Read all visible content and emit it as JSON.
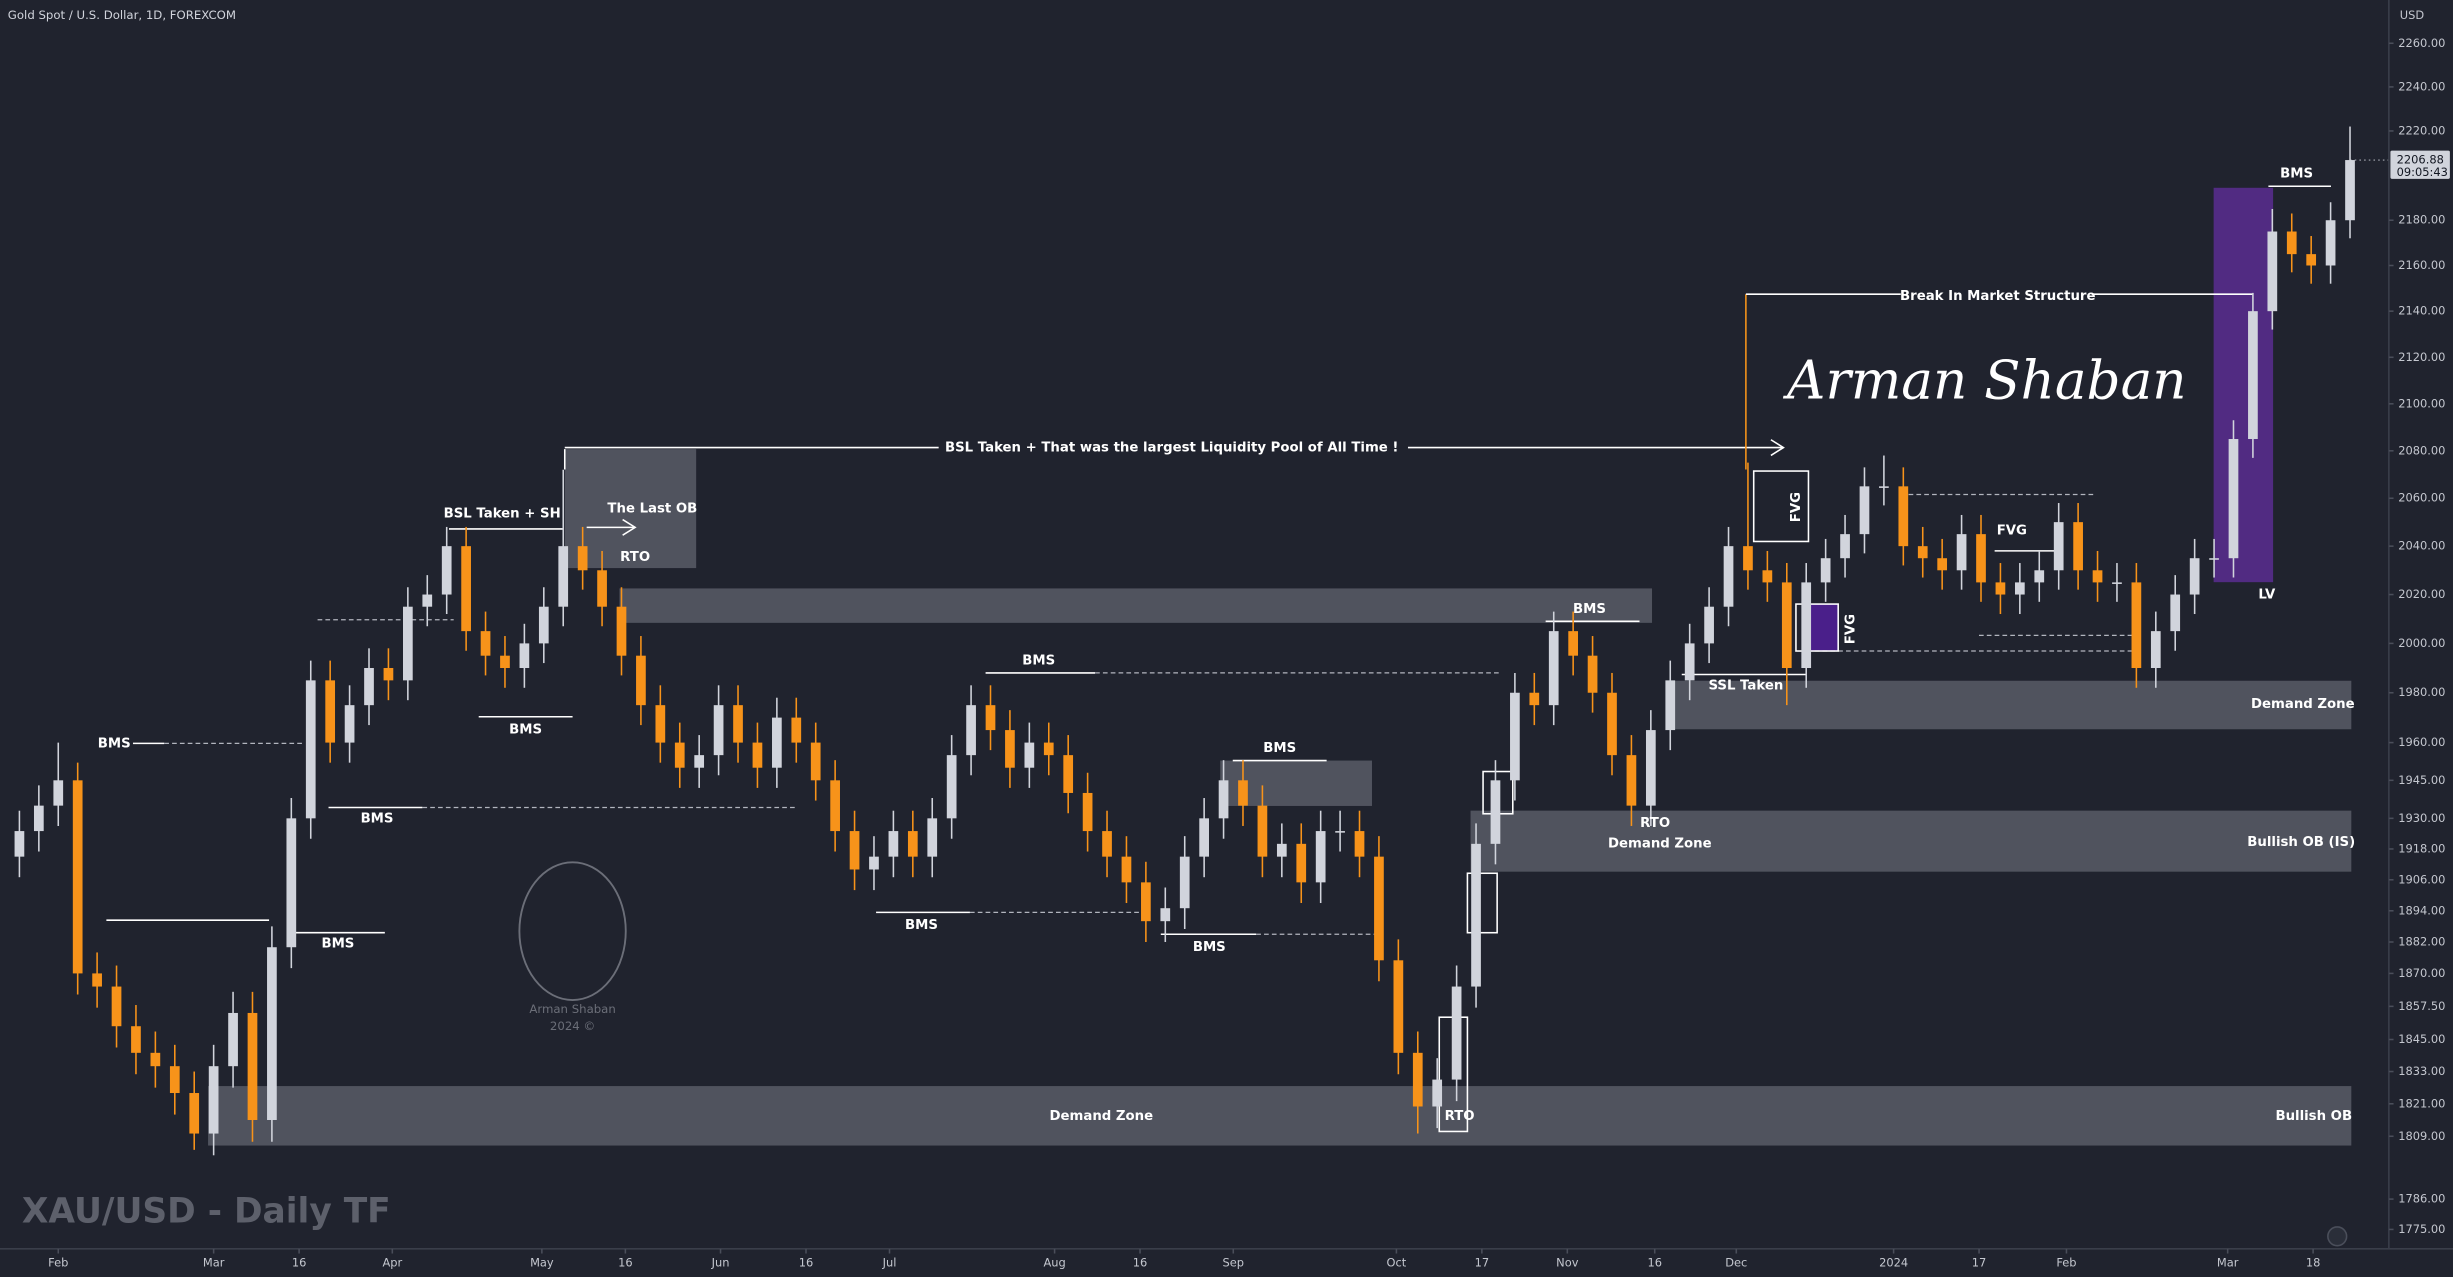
{
  "chart_data": {
    "type": "candlestick",
    "title": "Gold Spot / U.S. Dollar, 1D, FOREXCOM",
    "subtitle": "XAU/USD - Daily TF",
    "y_axis_label": "USD",
    "countdown": "09:05:43",
    "signature": "Arman Shaban",
    "watermark": [
      "Arman Shaban",
      "2024 ©"
    ],
    "up_color": "#d1d4dc",
    "down_color": "#f7931a",
    "log": true,
    "grid": false,
    "ylim": [
      1768,
      2280
    ],
    "yticks": [
      {
        "value": 2260,
        "label": "2260.00"
      },
      {
        "value": 2240,
        "label": "2240.00"
      },
      {
        "value": 2220,
        "label": "2220.00"
      },
      {
        "value": 2180,
        "label": "2180.00"
      },
      {
        "value": 2160,
        "label": "2160.00"
      },
      {
        "value": 2140,
        "label": "2140.00"
      },
      {
        "value": 2120,
        "label": "2120.00"
      },
      {
        "value": 2100,
        "label": "2100.00"
      },
      {
        "value": 2080,
        "label": "2080.00"
      },
      {
        "value": 2060,
        "label": "2060.00"
      },
      {
        "value": 2040,
        "label": "2040.00"
      },
      {
        "value": 2020,
        "label": "2020.00"
      },
      {
        "value": 2000,
        "label": "2000.00"
      },
      {
        "value": 1980,
        "label": "1980.00"
      },
      {
        "value": 1960,
        "label": "1960.00"
      },
      {
        "value": 1945,
        "label": "1945.00"
      },
      {
        "value": 1930,
        "label": "1930.00"
      },
      {
        "value": 1918,
        "label": "1918.00"
      },
      {
        "value": 1906,
        "label": "1906.00"
      },
      {
        "value": 1894,
        "label": "1894.00"
      },
      {
        "value": 1882,
        "label": "1882.00"
      },
      {
        "value": 1870,
        "label": "1870.00"
      },
      {
        "value": 1857.5,
        "label": "1857.50"
      },
      {
        "value": 1845,
        "label": "1845.00"
      },
      {
        "value": 1833,
        "label": "1833.00"
      },
      {
        "value": 1821,
        "label": "1821.00"
      },
      {
        "value": 1809,
        "label": "1809.00"
      },
      {
        "value": 1786,
        "label": "1786.00"
      },
      {
        "value": 1775,
        "label": "1775.00"
      }
    ],
    "xlim": [
      -1,
      122
    ],
    "xticks": [
      {
        "value": 2,
        "label": "Feb"
      },
      {
        "value": 10,
        "label": "Mar"
      },
      {
        "value": 14.4,
        "label": "16"
      },
      {
        "value": 19.2,
        "label": "Apr"
      },
      {
        "value": 26.9,
        "label": "May"
      },
      {
        "value": 31.2,
        "label": "16"
      },
      {
        "value": 36.1,
        "label": "Jun"
      },
      {
        "value": 40.5,
        "label": "16"
      },
      {
        "value": 44.8,
        "label": "Jul"
      },
      {
        "value": 53.3,
        "label": "Aug"
      },
      {
        "value": 57.7,
        "label": "16"
      },
      {
        "value": 62.5,
        "label": "Sep"
      },
      {
        "value": 70.9,
        "label": "Oct"
      },
      {
        "value": 75.3,
        "label": "17"
      },
      {
        "value": 79.7,
        "label": "Nov"
      },
      {
        "value": 84.2,
        "label": "16"
      },
      {
        "value": 88.4,
        "label": "Dec"
      },
      {
        "value": 96.5,
        "label": "2024"
      },
      {
        "value": 100.9,
        "label": "17"
      },
      {
        "value": 105.4,
        "label": "Feb"
      },
      {
        "value": 113.7,
        "label": "Mar"
      },
      {
        "value": 118.1,
        "label": "18"
      }
    ],
    "open": [
      1915,
      1925,
      1935,
      1945,
      1870,
      1865,
      1850,
      1840,
      1835,
      1825,
      1810,
      1835,
      1855,
      1815,
      1880,
      1930,
      1985,
      1960,
      1975,
      1990,
      1985,
      2015,
      2020,
      2040,
      2005,
      1995,
      1990,
      2000,
      2015,
      2040,
      2030,
      2015,
      1995,
      1975,
      1960,
      1950,
      1955,
      1975,
      1960,
      1950,
      1970,
      1960,
      1945,
      1925,
      1910,
      1915,
      1925,
      1915,
      1930,
      1955,
      1975,
      1965,
      1950,
      1960,
      1955,
      1940,
      1925,
      1915,
      1905,
      1890,
      1895,
      1915,
      1930,
      1945,
      1935,
      1915,
      1920,
      1905,
      1925,
      1925,
      1915,
      1875,
      1840,
      1820,
      1830,
      1865,
      1920,
      1945,
      1980,
      1975,
      2005,
      1995,
      1980,
      1955,
      1935,
      1965,
      1985,
      2000,
      2015,
      2040,
      2030,
      2025,
      1990,
      2025,
      2035,
      2045,
      2065,
      2065,
      2040,
      2035,
      2030,
      2045,
      2025,
      2020,
      2025,
      2030,
      2050,
      2030,
      2025,
      2025,
      1990,
      2005,
      2020,
      2035,
      2035,
      2085,
      2140,
      2175,
      2165,
      2160,
      2180
    ],
    "high": [
      1933,
      1943,
      1960,
      1952,
      1878,
      1873,
      1858,
      1848,
      1843,
      1833,
      1843,
      1863,
      1863,
      1888,
      1938,
      1993,
      1993,
      1983,
      1998,
      1998,
      2023,
      2028,
      2048,
      2048,
      2013,
      2003,
      2008,
      2023,
      2072,
      2048,
      2038,
      2023,
      2003,
      1983,
      1968,
      1963,
      1983,
      1983,
      1968,
      1978,
      1978,
      1968,
      1953,
      1933,
      1923,
      1933,
      1933,
      1938,
      1963,
      1983,
      1983,
      1973,
      1968,
      1968,
      1963,
      1948,
      1933,
      1923,
      1913,
      1903,
      1923,
      1938,
      1953,
      1953,
      1943,
      1928,
      1928,
      1933,
      1933,
      1933,
      1923,
      1883,
      1848,
      1838,
      1873,
      1928,
      1953,
      1988,
      1988,
      2013,
      2013,
      2003,
      1988,
      1963,
      1973,
      1993,
      2008,
      2023,
      2048,
      2075,
      2038,
      2033,
      2033,
      2043,
      2053,
      2073,
      2078,
      2073,
      2048,
      2043,
      2053,
      2053,
      2033,
      2033,
      2038,
      2058,
      2058,
      2038,
      2033,
      2033,
      2013,
      2028,
      2043,
      2043,
      2093,
      2148,
      2185,
      2183,
      2173,
      2188,
      2222
    ],
    "low": [
      1907,
      1917,
      1927,
      1862,
      1857,
      1842,
      1832,
      1827,
      1817,
      1804,
      1802,
      1827,
      1807,
      1807,
      1872,
      1922,
      1952,
      1952,
      1967,
      1977,
      1977,
      2007,
      2012,
      1997,
      1987,
      1982,
      1982,
      1992,
      2007,
      2022,
      2007,
      1987,
      1967,
      1952,
      1942,
      1942,
      1947,
      1952,
      1942,
      1942,
      1952,
      1937,
      1917,
      1902,
      1902,
      1907,
      1907,
      1907,
      1922,
      1947,
      1957,
      1942,
      1942,
      1947,
      1932,
      1917,
      1907,
      1897,
      1882,
      1882,
      1887,
      1907,
      1922,
      1927,
      1907,
      1907,
      1897,
      1897,
      1917,
      1907,
      1867,
      1832,
      1810,
      1812,
      1822,
      1857,
      1912,
      1937,
      1967,
      1967,
      1987,
      1972,
      1947,
      1927,
      1927,
      1957,
      1977,
      1992,
      2007,
      2022,
      2017,
      1975,
      1982,
      2017,
      2027,
      2037,
      2057,
      2032,
      2027,
      2022,
      2022,
      2017,
      2012,
      2012,
      2017,
      2022,
      2022,
      2017,
      2017,
      1982,
      1982,
      1997,
      2012,
      2027,
      2027,
      2077,
      2132,
      2157,
      2152,
      2152,
      2172
    ],
    "close": [
      1925,
      1935,
      1945,
      1870,
      1865,
      1850,
      1840,
      1835,
      1825,
      1810,
      1835,
      1855,
      1815,
      1880,
      1930,
      1985,
      1960,
      1975,
      1990,
      1985,
      2015,
      2020,
      2040,
      2005,
      1995,
      1990,
      2000,
      2015,
      2040,
      2030,
      2015,
      1995,
      1975,
      1960,
      1950,
      1955,
      1975,
      1960,
      1950,
      1970,
      1960,
      1945,
      1925,
      1910,
      1915,
      1925,
      1915,
      1930,
      1955,
      1975,
      1965,
      1950,
      1960,
      1955,
      1940,
      1925,
      1915,
      1905,
      1890,
      1895,
      1915,
      1930,
      1945,
      1935,
      1915,
      1920,
      1905,
      1925,
      1925,
      1915,
      1875,
      1840,
      1820,
      1830,
      1865,
      1920,
      1945,
      1980,
      1975,
      2005,
      1995,
      1980,
      1955,
      1935,
      1965,
      1985,
      2000,
      2015,
      2040,
      2030,
      2025,
      1990,
      2025,
      2035,
      2045,
      2065,
      2065,
      2040,
      2035,
      2030,
      2045,
      2025,
      2020,
      2025,
      2030,
      2050,
      2030,
      2025,
      2025,
      1990,
      2005,
      2020,
      2035,
      2035,
      2085,
      2140,
      2175,
      2165,
      2160,
      2180,
      2206.88
    ],
    "annotations": [
      "BMS",
      "BSL Taken + SH",
      "The Last OB",
      "RTO",
      "BMS",
      "BMS",
      "BMS",
      "BSL Taken + That was the largest Liquidity Pool of All Time !",
      "BMS",
      "BMS",
      "BMS",
      "BMS",
      "BMS",
      "RTO",
      "Demand Zone",
      "Demand Zone",
      "RTO",
      "SSL Taken",
      "FVG",
      "FVG",
      "FVG",
      "Break In Market Structure",
      "BMS",
      "LV",
      "Demand Zone",
      "Bullish OB (IS)",
      "Bullish OB"
    ]
  }
}
